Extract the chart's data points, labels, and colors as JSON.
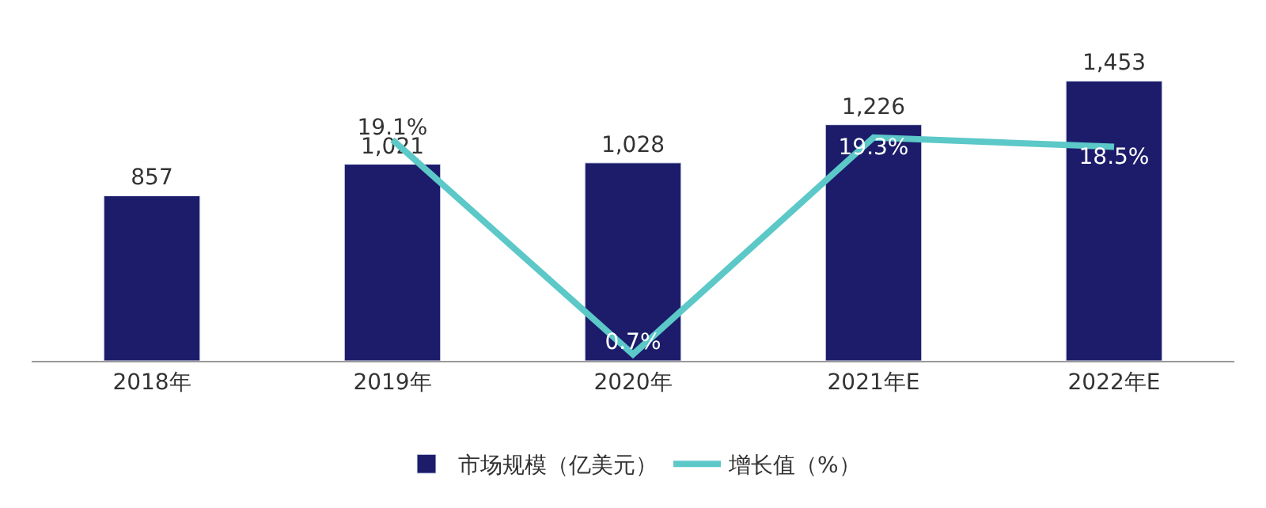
{
  "chart_data": {
    "type": "bar",
    "categories": [
      "2018年",
      "2019年",
      "2020年",
      "2021年E",
      "2022年E"
    ],
    "series": [
      {
        "name": "市场规模（亿美元）",
        "color": "#1c1c6b",
        "values": [
          857,
          1021,
          1028,
          1226,
          1453
        ],
        "value_labels": [
          "857",
          "1,021",
          "1,028",
          "1,226",
          "1,453"
        ]
      },
      {
        "name": "增长值（%）",
        "type": "line",
        "axis": "y2",
        "color": "#5cc8c8",
        "values": [
          null,
          19.1,
          0.7,
          19.3,
          18.5
        ],
        "value_labels": [
          null,
          "19.1%",
          "0.7%",
          "19.3%",
          "18.5%"
        ]
      }
    ],
    "legend": "bottom"
  }
}
